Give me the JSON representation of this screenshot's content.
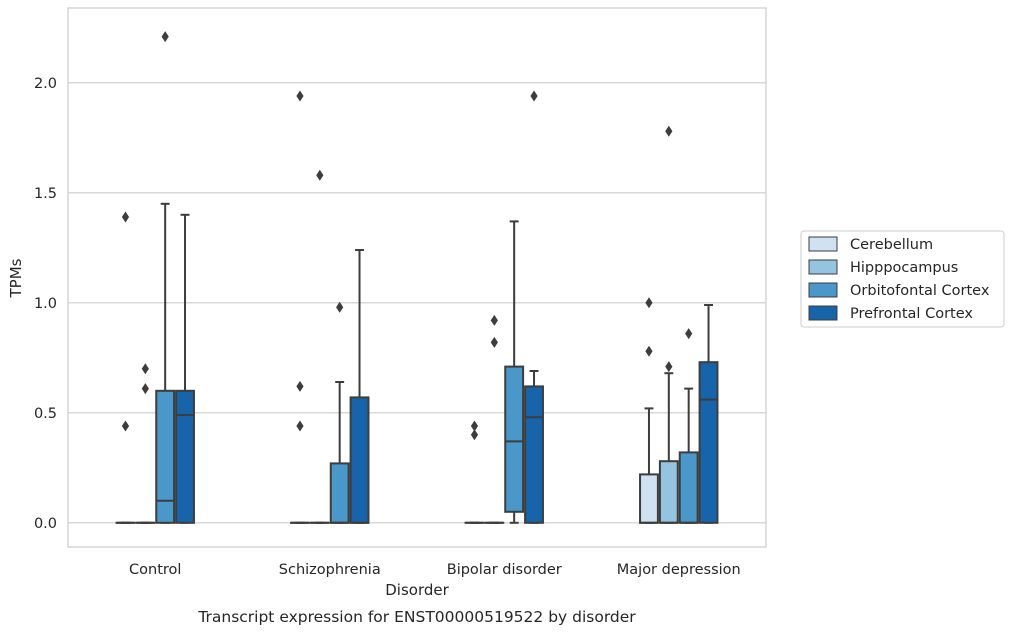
{
  "chart_data": {
    "type": "box",
    "xlabel": "Disorder",
    "ylabel": "TPMs",
    "caption": "Transcript expression for ENST00000519522 by disorder",
    "ylim": [
      -0.11,
      2.34
    ],
    "yticks": [
      0.0,
      0.5,
      1.0,
      1.5,
      2.0
    ],
    "ytick_labels": [
      "0.0",
      "0.5",
      "1.0",
      "1.5",
      "2.0"
    ],
    "grid": "horizontal",
    "legend_position": "right",
    "categories": [
      "Control",
      "Schizophrenia",
      "Bipolar disorder",
      "Major depression"
    ],
    "series": [
      {
        "name": "Cerebellum",
        "color": "#d0e1f2",
        "boxes": [
          {
            "q1": 0,
            "median": 0,
            "q3": 0,
            "whisker_low": 0,
            "whisker_high": 0,
            "outliers": [
              0.44,
              1.39
            ]
          },
          {
            "q1": 0,
            "median": 0,
            "q3": 0,
            "whisker_low": 0,
            "whisker_high": 0,
            "outliers": [
              0.44,
              0.62,
              1.94
            ]
          },
          {
            "q1": 0,
            "median": 0,
            "q3": 0,
            "whisker_low": 0,
            "whisker_high": 0,
            "outliers": [
              0.4,
              0.44
            ]
          },
          {
            "q1": 0,
            "median": 0,
            "q3": 0.22,
            "whisker_low": 0,
            "whisker_high": 0.52,
            "outliers": [
              0.78,
              1.0
            ]
          }
        ]
      },
      {
        "name": "Hipppocampus",
        "color": "#94c4df",
        "boxes": [
          {
            "q1": 0,
            "median": 0,
            "q3": 0,
            "whisker_low": 0,
            "whisker_high": 0,
            "outliers": [
              0.61,
              0.7
            ]
          },
          {
            "q1": 0,
            "median": 0,
            "q3": 0,
            "whisker_low": 0,
            "whisker_high": 0,
            "outliers": [
              1.58
            ]
          },
          {
            "q1": 0,
            "median": 0,
            "q3": 0,
            "whisker_low": 0,
            "whisker_high": 0,
            "outliers": [
              0.82,
              0.92
            ]
          },
          {
            "q1": 0,
            "median": 0,
            "q3": 0.28,
            "whisker_low": 0,
            "whisker_high": 0.68,
            "outliers": [
              0.71,
              1.78
            ]
          }
        ]
      },
      {
        "name": "Orbitofontal Cortex",
        "color": "#4a98c9",
        "boxes": [
          {
            "q1": 0,
            "median": 0.1,
            "q3": 0.6,
            "whisker_low": 0,
            "whisker_high": 1.45,
            "outliers": [
              2.21
            ]
          },
          {
            "q1": 0,
            "median": 0,
            "q3": 0.27,
            "whisker_low": 0,
            "whisker_high": 0.64,
            "outliers": [
              0.98
            ]
          },
          {
            "q1": 0.05,
            "median": 0.37,
            "q3": 0.71,
            "whisker_low": 0,
            "whisker_high": 1.37,
            "outliers": []
          },
          {
            "q1": 0,
            "median": 0,
            "q3": 0.32,
            "whisker_low": 0,
            "whisker_high": 0.61,
            "outliers": [
              0.86
            ]
          }
        ]
      },
      {
        "name": "Prefrontal Cortex",
        "color": "#1764ab",
        "boxes": [
          {
            "q1": 0,
            "median": 0.49,
            "q3": 0.6,
            "whisker_low": 0,
            "whisker_high": 1.4,
            "outliers": []
          },
          {
            "q1": 0,
            "median": 0,
            "q3": 0.57,
            "whisker_low": 0,
            "whisker_high": 1.24,
            "outliers": []
          },
          {
            "q1": 0,
            "median": 0.48,
            "q3": 0.62,
            "whisker_low": 0,
            "whisker_high": 0.69,
            "outliers": [
              1.94
            ]
          },
          {
            "q1": 0,
            "median": 0.56,
            "q3": 0.73,
            "whisker_low": 0,
            "whisker_high": 0.99,
            "outliers": []
          }
        ]
      }
    ]
  }
}
